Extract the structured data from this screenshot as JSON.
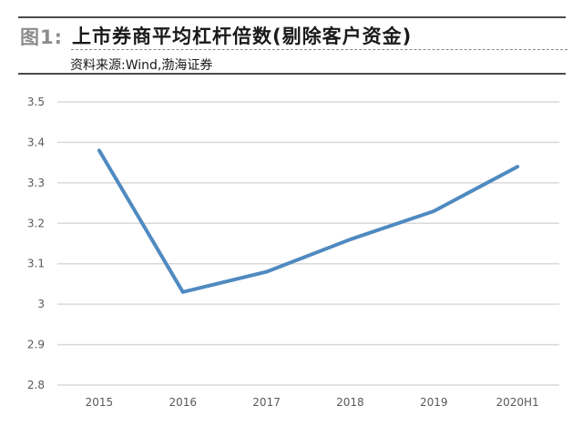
{
  "figure": {
    "label": "图1:",
    "title": "上市券商平均杠杆倍数(剔除客户资金)",
    "source": "资料来源:Wind,渤海证券"
  },
  "colors": {
    "line": "#4f8ac0",
    "grid": "#d9d9d9",
    "tick_text": "#595959",
    "label_gray": "#8c8c8c"
  },
  "chart_data": {
    "type": "line",
    "title": "上市券商平均杠杆倍数(剔除客户资金)",
    "xlabel": "",
    "ylabel": "",
    "categories": [
      "2015",
      "2016",
      "2017",
      "2018",
      "2019",
      "2020H1"
    ],
    "series": [
      {
        "name": "平均杠杆倍数",
        "values": [
          3.38,
          3.03,
          3.08,
          3.16,
          3.23,
          3.34
        ]
      }
    ],
    "ylim": [
      2.8,
      3.5
    ],
    "yticks": [
      "3.5",
      "3.4",
      "3.3",
      "3.2",
      "3.1",
      "3",
      "2.9",
      "2.8"
    ],
    "grid": true,
    "legend": "none",
    "source": "Wind,渤海证券"
  }
}
